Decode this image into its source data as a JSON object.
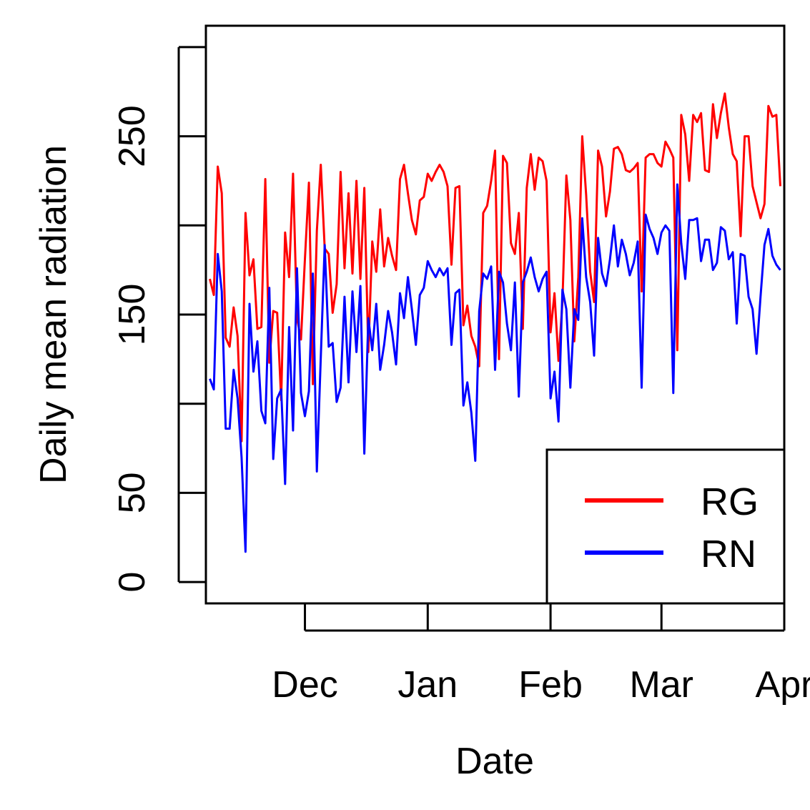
{
  "chart_data": {
    "type": "line",
    "title": "",
    "xlabel": "Date",
    "ylabel": "Daily mean radiation",
    "x_start_date": "2018-11-07",
    "x_end_date": "2019-03-31",
    "xlim_dates": [
      "2018-11-06",
      "2019-04-01"
    ],
    "x_ticks": [
      {
        "date": "2018-12-01",
        "label": "Dec"
      },
      {
        "date": "2019-01-01",
        "label": "Jan"
      },
      {
        "date": "2019-02-01",
        "label": "Feb"
      },
      {
        "date": "2019-03-01",
        "label": "Mar"
      },
      {
        "date": "2019-04-01",
        "label": "Apr"
      }
    ],
    "ylim": [
      -12,
      312
    ],
    "y_ticks": [
      0,
      50,
      100,
      150,
      200,
      250,
      300
    ],
    "y_tick_labels": [
      "0",
      "50",
      "",
      "150",
      "",
      "250",
      ""
    ],
    "legend": {
      "position": "bottom-right",
      "entries": [
        "RG",
        "RN"
      ]
    },
    "series": [
      {
        "name": "RG",
        "color": "#ff0000",
        "values": [
          170,
          161,
          233,
          218,
          137,
          132,
          154,
          138,
          79,
          207,
          172,
          181,
          142,
          143,
          226,
          123,
          152,
          151,
          102,
          196,
          171,
          229,
          148,
          136,
          181,
          224,
          111,
          197,
          234,
          187,
          184,
          151,
          167,
          230,
          176,
          218,
          173,
          225,
          170,
          221,
          129,
          191,
          174,
          209,
          177,
          193,
          183,
          175,
          226,
          234,
          218,
          203,
          195,
          214,
          216,
          229,
          225,
          230,
          234,
          230,
          222,
          178,
          221,
          222,
          144,
          155,
          138,
          132,
          121,
          207,
          211,
          225,
          242,
          125,
          239,
          235,
          190,
          184,
          207,
          142,
          221,
          240,
          220,
          238,
          236,
          225,
          140,
          162,
          124,
          157,
          228,
          203,
          135,
          171,
          250,
          217,
          174,
          157,
          242,
          233,
          205,
          219,
          243,
          244,
          240,
          231,
          230,
          232,
          235,
          163,
          238,
          240,
          240,
          235,
          233,
          247,
          243,
          238,
          130,
          262,
          251,
          225,
          262,
          258,
          263,
          231,
          230,
          268,
          249,
          263,
          274,
          255,
          240,
          236,
          194,
          250,
          250,
          222,
          213,
          204,
          212,
          267,
          261,
          262,
          222
        ]
      },
      {
        "name": "RN",
        "color": "#0000ff",
        "values": [
          114,
          108,
          184,
          163,
          86,
          86,
          119,
          103,
          70,
          17,
          156,
          118,
          135,
          96,
          89,
          165,
          69,
          103,
          108,
          55,
          143,
          85,
          176,
          106,
          93,
          107,
          173,
          62,
          126,
          189,
          132,
          134,
          101,
          109,
          160,
          112,
          163,
          129,
          166,
          72,
          148,
          130,
          156,
          119,
          133,
          152,
          140,
          122,
          162,
          148,
          171,
          153,
          133,
          161,
          165,
          180,
          175,
          171,
          176,
          172,
          176,
          133,
          162,
          164,
          99,
          112,
          95,
          68,
          152,
          173,
          170,
          177,
          119,
          174,
          168,
          145,
          130,
          168,
          104,
          168,
          174,
          182,
          171,
          163,
          170,
          174,
          103,
          118,
          90,
          164,
          153,
          109,
          153,
          147,
          204,
          171,
          157,
          127,
          193,
          173,
          166,
          181,
          200,
          177,
          192,
          184,
          172,
          179,
          191,
          109,
          206,
          198,
          193,
          184,
          196,
          200,
          197,
          106,
          223,
          190,
          170,
          203,
          203,
          204,
          180,
          192,
          192,
          175,
          179,
          199,
          197,
          181,
          185,
          145,
          184,
          183,
          160,
          153,
          128,
          160,
          189,
          198,
          183,
          178,
          175
        ]
      }
    ]
  }
}
